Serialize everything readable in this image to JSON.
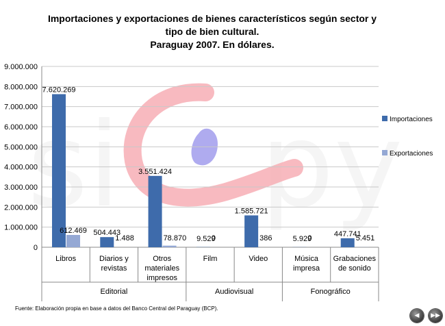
{
  "chart_data": {
    "type": "bar",
    "title": [
      "Importaciones  y exportaciones  de bienes característicos  según sector y",
      "tipo de bien cultural.",
      "Paraguay   2007. En dólares."
    ],
    "categories": [
      "Libros",
      "Diarios y revistas",
      "Otros materiales impresos",
      "Film",
      "Video",
      "Música impresa",
      "Grabaciones de sonido"
    ],
    "category_lines": [
      [
        "Libros"
      ],
      [
        "Diarios y",
        "revistas"
      ],
      [
        "Otros",
        "materiales",
        "impresos"
      ],
      [
        "Film"
      ],
      [
        "Video"
      ],
      [
        "Música",
        "impresa"
      ],
      [
        "Grabaciones",
        "de sonido"
      ]
    ],
    "groups": [
      {
        "label": "Editorial",
        "from": 0,
        "to": 2
      },
      {
        "label": "Audiovisual",
        "from": 3,
        "to": 4
      },
      {
        "label": "Fonográfico",
        "from": 5,
        "to": 6
      }
    ],
    "series": [
      {
        "name": "Importaciones",
        "color": "#3e6bab",
        "values": [
          7620269,
          504443,
          3551424,
          9529,
          1585721,
          5929,
          447741
        ],
        "labels": [
          "7.620.269",
          "504.443",
          "3.551.424",
          "9.529",
          "1.585.721",
          "5.929",
          "447.741"
        ]
      },
      {
        "name": "Exportaciones",
        "color": "#94a8d4",
        "values": [
          612469,
          1488,
          78870,
          0,
          386,
          0,
          5451
        ],
        "labels": [
          "612.469",
          "1.488",
          "78.870",
          "0",
          "386",
          "0",
          "5.451"
        ]
      }
    ],
    "ylim": [
      0,
      9000000
    ],
    "yticks": [
      0,
      1000000,
      2000000,
      3000000,
      4000000,
      5000000,
      6000000,
      7000000,
      8000000,
      9000000
    ],
    "ytick_labels": [
      "0",
      "1.000.000",
      "2.000.000",
      "3.000.000",
      "4.000.000",
      "5.000.000",
      "6.000.000",
      "7.000.000",
      "8.000.000",
      "9.000.000"
    ],
    "grid": true,
    "legend_position": "right",
    "watermark": "sicpy",
    "source": "Fuente:  Elaboración propia en base a datos del Banco Central del Paraguay (BCP)."
  },
  "nav": {
    "prev_icon": "arrow-left-icon",
    "next_icon": "arrow-right-icon",
    "prev_glyph": "◀",
    "next_glyph": "▶▶"
  }
}
